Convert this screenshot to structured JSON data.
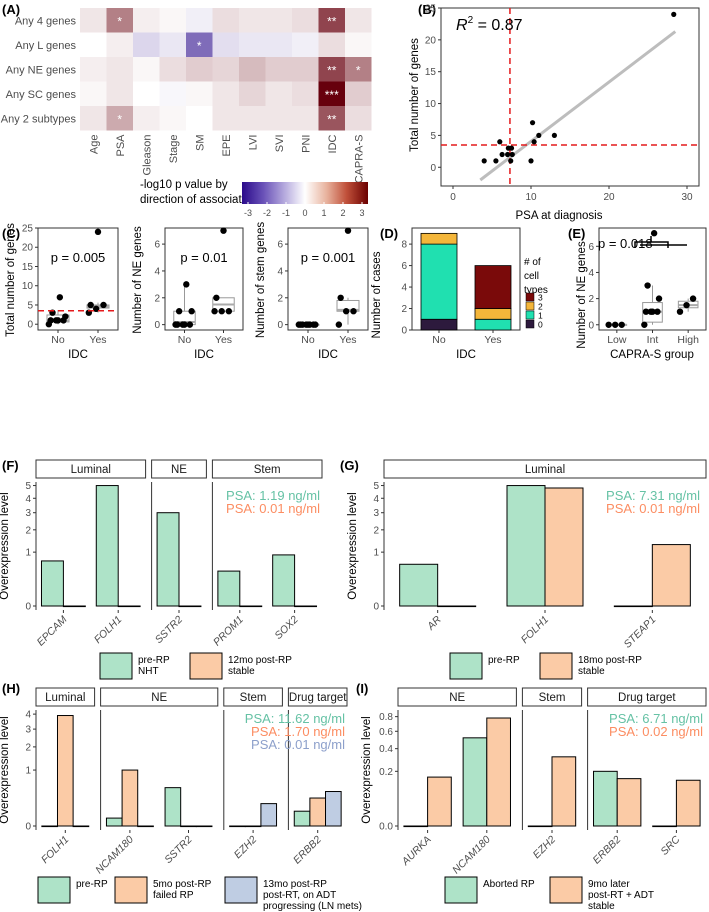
{
  "colors": {
    "pre": "#aee3c8",
    "post": "#fbcba6",
    "third": "#bfcde3",
    "psa_green": "#66c2a5",
    "psa_orange": "#fc8d62",
    "psa_blue": "#8da0cb",
    "teal": "#20e0b0",
    "dark_red": "#7a0a0a",
    "gold": "#f4b63a",
    "dark_purple": "#2d1a3d"
  },
  "A": {
    "label": "(A)",
    "rows": [
      "Any 4 genes",
      "Any L genes",
      "Any NE genes",
      "Any SC genes",
      "Any 2 subtypes"
    ],
    "cols": [
      "Age",
      "PSA",
      "Gleason",
      "Stage",
      "SM",
      "EPE",
      "LVI",
      "SVI",
      "PNI",
      "IDC",
      "CAPRA-S"
    ],
    "values": [
      [
        0.3,
        1.5,
        0.2,
        0.1,
        -0.2,
        0.4,
        0.3,
        0.3,
        0.4,
        2.2,
        0.3
      ],
      [
        0.0,
        0.2,
        -0.5,
        -0.3,
        -1.8,
        -0.4,
        -0.3,
        -0.3,
        -0.2,
        0.4,
        0.1
      ],
      [
        0.2,
        0.3,
        0.1,
        0.4,
        0.6,
        0.5,
        0.8,
        0.6,
        0.6,
        2.2,
        1.5
      ],
      [
        0.1,
        0.3,
        0.0,
        -0.1,
        0.1,
        0.3,
        0.5,
        0.3,
        0.4,
        3.0,
        0.6
      ],
      [
        0.3,
        1.0,
        0.2,
        0.1,
        0.0,
        0.3,
        0.3,
        0.3,
        0.3,
        2.0,
        0.4
      ]
    ],
    "stars": [
      [
        "",
        "*",
        "",
        "",
        "",
        "",
        "",
        "",
        "",
        "**",
        ""
      ],
      [
        "",
        "",
        "",
        "",
        "*",
        "",
        "",
        "",
        "",
        "",
        ""
      ],
      [
        "",
        "",
        "",
        "",
        "",
        "",
        "",
        "",
        "",
        "**",
        "*"
      ],
      [
        "",
        "",
        "",
        "",
        "",
        "",
        "",
        "",
        "",
        "***",
        ""
      ],
      [
        "",
        "*",
        "",
        "",
        "",
        "",
        "",
        "",
        "",
        "**",
        ""
      ]
    ],
    "legend_title_1": "-log10 p value by",
    "legend_title_2": "direction of association",
    "legend_ticks": [
      "-3",
      "-2",
      "-1",
      "0",
      "1",
      "2",
      "3"
    ]
  },
  "B": {
    "label": "(B)",
    "r2_text": "R",
    "r2_sup": "2",
    "r2_value": " = 0.87",
    "xlabel": "PSA at diagnosis",
    "ylabel": "Total number of genes",
    "xticks": [
      0,
      10,
      20,
      30
    ],
    "yticks": [
      0,
      5,
      10,
      15,
      20,
      25
    ]
  },
  "C": {
    "label": "(C)",
    "xlabel": "IDC",
    "groups": [
      "No",
      "Yes"
    ],
    "panels": [
      {
        "ylabel": "Total number of genes",
        "p": "p = 0.005",
        "yticks": [
          0,
          5,
          10,
          15,
          20,
          25
        ]
      },
      {
        "ylabel": "Number of NE genes",
        "p": "p = 0.01",
        "yticks": [
          0,
          2,
          4,
          6
        ]
      },
      {
        "ylabel": "Number of stem genes",
        "p": "p = 0.001",
        "yticks": [
          0,
          2,
          4,
          6
        ]
      }
    ]
  },
  "D": {
    "label": "(D)",
    "xlabel": "IDC",
    "ylabel": "Number of cases",
    "groups": [
      "No",
      "Yes"
    ],
    "yticks": [
      0,
      2,
      4,
      6,
      8
    ],
    "legend_title": [
      "# of",
      "cell",
      "types"
    ],
    "legend_items": [
      "3",
      "2",
      "1",
      "0"
    ]
  },
  "E": {
    "label": "(E)",
    "p": "p = 0.018",
    "xlabel": "CAPRA-S group",
    "ylabel": "Number of NE genes",
    "groups": [
      "Low",
      "Int",
      "High"
    ],
    "yticks": [
      0,
      2,
      4,
      6
    ]
  },
  "F": {
    "label": "(F)",
    "ylabel": "Overexpression level",
    "strips": [
      "Luminal",
      "NE",
      "Stem"
    ],
    "genes": [
      "EPCAM",
      "FOLH1",
      "SSTR2",
      "PROM1",
      "SOX2"
    ],
    "yticks": [
      "0",
      "1",
      "2",
      "3",
      "4",
      "5"
    ],
    "psa": [
      "PSA: 1.19 ng/ml",
      "PSA: 0.01 ng/ml"
    ],
    "legend": [
      "pre-RP",
      "NHT",
      "12mo post-RP",
      "stable"
    ]
  },
  "G": {
    "label": "(G)",
    "ylabel": "Overexpression level",
    "strips": [
      "Luminal"
    ],
    "genes": [
      "AR",
      "FOLH1",
      "STEAP1"
    ],
    "yticks": [
      "0",
      "1",
      "2",
      "3",
      "4",
      "5"
    ],
    "psa": [
      "PSA: 7.31 ng/ml",
      "PSA: 0.01 ng/ml"
    ],
    "legend": [
      "pre-RP",
      "18mo post-RP",
      "stable"
    ]
  },
  "H": {
    "label": "(H)",
    "ylabel": "Overexpression level",
    "strips": [
      "Luminal",
      "NE",
      "Stem",
      "Drug target"
    ],
    "genes": [
      "FOLH1",
      "NCAM180",
      "SSTR2",
      "EZH2",
      "ERBB2"
    ],
    "yticks": [
      "0",
      "1",
      "2",
      "3",
      "4"
    ],
    "psa": [
      "PSA: 11.62 ng/ml",
      "PSA: 1.70 ng/ml",
      "PSA: 0.01 ng/ml"
    ],
    "legend": [
      "pre-RP",
      "5mo post-RP",
      "failed RP",
      "13mo post-RP",
      "post-RT, on ADT",
      "progressing (LN mets)"
    ]
  },
  "I": {
    "label": "(I)",
    "ylabel": "Overexpression level",
    "strips": [
      "NE",
      "Stem",
      "Drug target"
    ],
    "genes": [
      "AURKA",
      "NCAM180",
      "EZH2",
      "ERBB2",
      "SRC"
    ],
    "yticks": [
      "0.0",
      "0.2",
      "0.4",
      "0.6",
      "0.8"
    ],
    "psa": [
      "PSA: 6.71 ng/ml",
      "PSA: 0.02 ng/ml"
    ],
    "legend": [
      "Aborted RP",
      "9mo later",
      "post-RT + ADT",
      "stable"
    ]
  },
  "chart_data": [
    {
      "panel": "A",
      "type": "heatmap",
      "title": "-log10 p value by direction of association",
      "rows": [
        "Any 4 genes",
        "Any L genes",
        "Any NE genes",
        "Any SC genes",
        "Any 2 subtypes"
      ],
      "cols": [
        "Age",
        "PSA",
        "Gleason",
        "Stage",
        "SM",
        "EPE",
        "LVI",
        "SVI",
        "PNI",
        "IDC",
        "CAPRA-S"
      ],
      "range": [
        -3,
        3
      ]
    },
    {
      "panel": "B",
      "type": "scatter",
      "xlabel": "PSA at diagnosis",
      "ylabel": "Total number of genes",
      "xlim": [
        0,
        30
      ],
      "ylim": [
        -2,
        25
      ],
      "points": [
        [
          4,
          1
        ],
        [
          5.5,
          1
        ],
        [
          6,
          4
        ],
        [
          6.3,
          2
        ],
        [
          7,
          2
        ],
        [
          7.1,
          3
        ],
        [
          7.4,
          1
        ],
        [
          7.5,
          3
        ],
        [
          7.6,
          2
        ],
        [
          10,
          1
        ],
        [
          10.2,
          7
        ],
        [
          10.4,
          4
        ],
        [
          11,
          5
        ],
        [
          13,
          5
        ],
        [
          28.3,
          24
        ]
      ],
      "fit": {
        "x": [
          3.5,
          28.5
        ],
        "y": [
          -2,
          21.3
        ]
      },
      "vline": 7.3,
      "hline": 3.5,
      "r2": 0.87
    },
    {
      "panel": "C1",
      "type": "box",
      "ylabel": "Total number of genes",
      "groups": [
        "No",
        "Yes"
      ],
      "ylim": [
        -1.5,
        25
      ],
      "points": {
        "No": [
          0,
          1,
          1,
          1,
          1,
          2,
          3,
          7
        ],
        "Yes": [
          3,
          4,
          5,
          5,
          24
        ]
      },
      "box": {
        "No": [
          0,
          0.6,
          1,
          2.4,
          3.7
        ],
        "Yes": [
          3,
          4.2,
          4.6,
          5,
          5.6
        ]
      },
      "hline": 3.5,
      "p": "p = 0.005"
    },
    {
      "panel": "C2",
      "type": "box",
      "ylabel": "Number of NE genes",
      "groups": [
        "No",
        "Yes"
      ],
      "ylim": [
        -0.4,
        7.2
      ],
      "points": {
        "No": [
          0,
          0,
          0,
          0,
          0,
          1,
          1,
          3
        ],
        "Yes": [
          1,
          1,
          1,
          2,
          7
        ]
      },
      "box": {
        "No": [
          0,
          0,
          0.2,
          1,
          3
        ],
        "Yes": [
          1,
          1,
          1.5,
          2,
          2
        ]
      },
      "p": "p = 0.01"
    },
    {
      "panel": "C3",
      "type": "box",
      "ylabel": "Number of stem genes",
      "groups": [
        "No",
        "Yes"
      ],
      "ylim": [
        -0.4,
        7.2
      ],
      "points": {
        "No": [
          0,
          0,
          0,
          0,
          0,
          0,
          0,
          0
        ],
        "Yes": [
          0,
          1,
          1,
          2,
          7
        ]
      },
      "box": {
        "No": [
          0,
          0,
          0,
          0,
          0
        ],
        "Yes": [
          0,
          1,
          1.1,
          1.8,
          2
        ]
      },
      "p": "p = 0.001"
    },
    {
      "panel": "D",
      "type": "bar",
      "stacked": true,
      "categories": [
        "No",
        "Yes"
      ],
      "xlabel": "IDC",
      "ylabel": "Number of cases",
      "ylim": [
        0,
        9.5
      ],
      "series": [
        {
          "name": "0",
          "color": "#2d1a3d",
          "values": [
            1,
            0
          ]
        },
        {
          "name": "1",
          "color": "#20e0b0",
          "values": [
            7,
            1
          ]
        },
        {
          "name": "2",
          "color": "#f4b63a",
          "values": [
            1,
            1
          ]
        },
        {
          "name": "3",
          "color": "#7a0a0a",
          "values": [
            0,
            4
          ]
        }
      ]
    },
    {
      "panel": "E",
      "type": "box",
      "ylabel": "Number of NE genes",
      "groups": [
        "Low",
        "Int",
        "High"
      ],
      "ylim": [
        -0.4,
        7.4
      ],
      "points": {
        "Low": [
          0,
          0,
          0
        ],
        "Int": [
          0,
          1,
          1,
          1,
          1,
          2,
          3,
          7
        ],
        "High": [
          1,
          1.5,
          2
        ]
      },
      "box": {
        "Low": [
          0,
          0,
          0,
          0,
          0
        ],
        "Int": [
          0,
          0.2,
          1,
          1.7,
          3
        ],
        "High": [
          1,
          1.3,
          1.5,
          1.8,
          2
        ]
      },
      "p": "p = 0.018"
    },
    {
      "panel": "F",
      "type": "bar",
      "categories": [
        "EPCAM",
        "FOLH1",
        "SSTR2",
        "PROM1",
        "SOX2"
      ],
      "ylabel": "Overexpression level",
      "scale": "sqrt",
      "ylim": [
        0,
        5.3
      ],
      "series": [
        {
          "name": "pre-RP NHT",
          "values": [
            0.7,
            5.0,
            3.0,
            0.42,
            0.9
          ]
        },
        {
          "name": "12mo post-RP stable",
          "values": [
            0,
            0,
            0,
            0,
            0
          ]
        }
      ]
    },
    {
      "panel": "G",
      "type": "bar",
      "categories": [
        "AR",
        "FOLH1",
        "STEAP1"
      ],
      "ylabel": "Overexpression level",
      "scale": "sqrt",
      "ylim": [
        0,
        5.3
      ],
      "series": [
        {
          "name": "pre-RP",
          "values": [
            0.6,
            5.0,
            0
          ]
        },
        {
          "name": "18mo post-RP stable",
          "values": [
            0,
            4.8,
            1.3
          ]
        }
      ]
    },
    {
      "panel": "H",
      "type": "bar",
      "categories": [
        "FOLH1",
        "NCAM180",
        "SSTR2",
        "EZH2",
        "ERBB2"
      ],
      "ylabel": "Overexpression level",
      "scale": "sqrt",
      "ylim": [
        0,
        4.3
      ],
      "series": [
        {
          "name": "pre-RP",
          "values": [
            0,
            0.02,
            0.47,
            0,
            0.07
          ]
        },
        {
          "name": "5mo post-RP failed RP",
          "values": [
            3.9,
            1.0,
            0,
            0,
            0.25
          ]
        },
        {
          "name": "13mo post-RP post-RT, on ADT progressing (LN mets)",
          "values": [
            0,
            0,
            0,
            0.16,
            0.38
          ]
        }
      ]
    },
    {
      "panel": "I",
      "type": "bar",
      "categories": [
        "AURKA",
        "NCAM180",
        "EZH2",
        "ERBB2",
        "SRC"
      ],
      "ylabel": "Overexpression level",
      "scale": "sqrt",
      "ylim": [
        0,
        0.9
      ],
      "series": [
        {
          "name": "Aborted RP",
          "values": [
            0,
            0.52,
            0,
            0.2,
            0
          ]
        },
        {
          "name": "9mo later post-RT + ADT stable",
          "values": [
            0.16,
            0.78,
            0.32,
            0.15,
            0.14
          ]
        }
      ]
    }
  ]
}
